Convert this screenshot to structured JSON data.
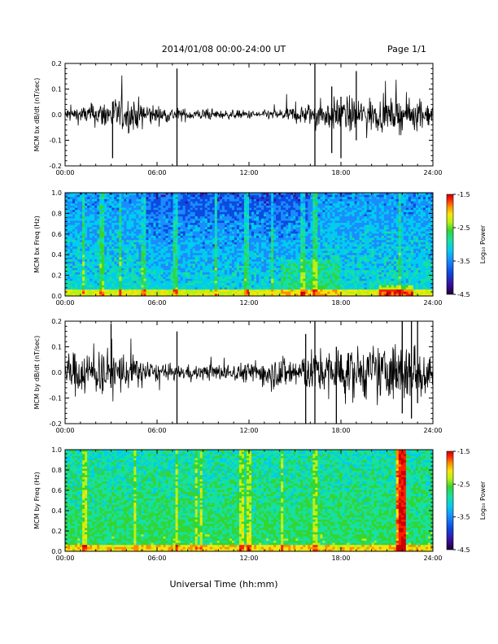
{
  "header": {
    "title": "2014/01/08  00:00-24:00 UT",
    "page": "Page 1/1"
  },
  "footer": {
    "xlabel": "Universal Time (hh:mm)"
  },
  "colorscale": [
    "#1a0033",
    "#3b0fa0",
    "#0a4be0",
    "#1a8cff",
    "#00ccee",
    "#17e0a0",
    "#33d633",
    "#b8f013",
    "#f5e60a",
    "#ff8c00",
    "#ff2000",
    "#cc0000"
  ],
  "chart_data": [
    {
      "type": "line",
      "title": "",
      "xlabel": "",
      "ylabel": "MCM bx dB/dt (nT/sec)",
      "xlim": [
        0,
        24
      ],
      "ylim": [
        -0.2,
        0.2
      ],
      "x_ticks": [
        "00:00",
        "06:00",
        "12:00",
        "18:00",
        "24:00"
      ],
      "y_ticks": [
        "0.2",
        "0.1",
        "0.0",
        "-0.1",
        "-0.2"
      ],
      "series": [
        {
          "x": [
            0,
            1,
            2,
            3,
            4,
            5,
            6,
            7,
            8,
            9,
            10,
            11,
            12,
            13,
            14,
            15,
            16,
            17,
            18,
            19,
            20,
            21,
            22,
            23,
            24
          ],
          "values": [
            0.025,
            0.03,
            0.04,
            0.06,
            0.06,
            0.05,
            0.03,
            0.025,
            0.02,
            0.02,
            0.015,
            0.015,
            0.015,
            0.015,
            0.02,
            0.03,
            0.04,
            0.05,
            0.06,
            0.06,
            0.06,
            0.05,
            0.06,
            0.05,
            0.04
          ]
        }
      ],
      "spikes": [
        {
          "x": 3.1,
          "min": -0.17,
          "max": 0.05
        },
        {
          "x": 7.3,
          "min": -0.2,
          "max": 0.18
        },
        {
          "x": 16.3,
          "min": -0.2,
          "max": 0.2
        },
        {
          "x": 17.4,
          "min": -0.15,
          "max": 0.11
        },
        {
          "x": 18.0,
          "min": -0.17,
          "max": 0.07
        },
        {
          "x": 19.0,
          "min": -0.1,
          "max": 0.17
        }
      ]
    },
    {
      "type": "heatmap",
      "title": "",
      "xlabel": "",
      "ylabel": "MCM bx Freq (Hz)",
      "xlim": [
        0,
        24
      ],
      "ylim": [
        0,
        1.0
      ],
      "x_ticks": [
        "00:00",
        "06:00",
        "12:00",
        "18:00",
        "24:00"
      ],
      "y_ticks": [
        "1.0",
        "0.8",
        "0.6",
        "0.4",
        "0.2",
        "0.0"
      ],
      "colorbar_label": "Log₁₀ Power",
      "colorbar_ticks": [
        "-1.5",
        "-2.5",
        "-3.5",
        "-4.5"
      ],
      "zlim": [
        -4.5,
        -1.5
      ],
      "stripes": [
        1.2,
        2.4,
        3.6,
        5.1,
        7.2,
        9.8,
        11.8,
        13.5,
        15.5,
        16.3,
        21.8
      ]
    },
    {
      "type": "line",
      "title": "",
      "xlabel": "",
      "ylabel": "MCM by dB/dt (nT/sec)",
      "xlim": [
        0,
        24
      ],
      "ylim": [
        -0.2,
        0.2
      ],
      "x_ticks": [
        "00:00",
        "06:00",
        "12:00",
        "18:00",
        "24:00"
      ],
      "y_ticks": [
        "0.2",
        "0.1",
        "0.0",
        "-0.1",
        "-0.2"
      ],
      "series": [
        {
          "x": [
            0,
            1,
            2,
            3,
            4,
            5,
            6,
            7,
            8,
            9,
            10,
            11,
            12,
            13,
            14,
            15,
            16,
            17,
            18,
            19,
            20,
            21,
            22,
            23,
            24
          ],
          "values": [
            0.06,
            0.08,
            0.08,
            0.08,
            0.07,
            0.05,
            0.03,
            0.025,
            0.025,
            0.025,
            0.03,
            0.03,
            0.035,
            0.05,
            0.06,
            0.06,
            0.07,
            0.08,
            0.09,
            0.09,
            0.09,
            0.1,
            0.11,
            0.1,
            0.08
          ]
        }
      ],
      "spikes": [
        {
          "x": 3.0,
          "min": -0.06,
          "max": 0.19
        },
        {
          "x": 7.3,
          "min": -0.2,
          "max": 0.16
        },
        {
          "x": 15.7,
          "min": -0.2,
          "max": 0.15
        },
        {
          "x": 16.3,
          "min": -0.2,
          "max": 0.2
        },
        {
          "x": 17.7,
          "min": -0.2,
          "max": 0.1
        },
        {
          "x": 22.0,
          "min": -0.16,
          "max": 0.2
        },
        {
          "x": 22.6,
          "min": -0.18,
          "max": 0.2
        },
        {
          "x": 23.0,
          "min": -0.12,
          "max": 0.2
        }
      ]
    },
    {
      "type": "heatmap",
      "title": "",
      "xlabel": "",
      "ylabel": "MCM by Freq (Hz)",
      "xlim": [
        0,
        24
      ],
      "ylim": [
        0,
        1.0
      ],
      "x_ticks": [
        "00:00",
        "06:00",
        "12:00",
        "18:00",
        "24:00"
      ],
      "y_ticks": [
        "1.0",
        "0.8",
        "0.6",
        "0.4",
        "0.2",
        "0.0"
      ],
      "colorbar_label": "Log₁₀ Power",
      "colorbar_ticks": [
        "-1.5",
        "-2.5",
        "-3.5",
        "-4.5"
      ],
      "zlim": [
        -4.5,
        -1.5
      ],
      "stripes": [
        1.3,
        4.6,
        7.3,
        8.6,
        8.9,
        11.5,
        12.0,
        14.2,
        16.3,
        21.9,
        22.1
      ]
    }
  ]
}
